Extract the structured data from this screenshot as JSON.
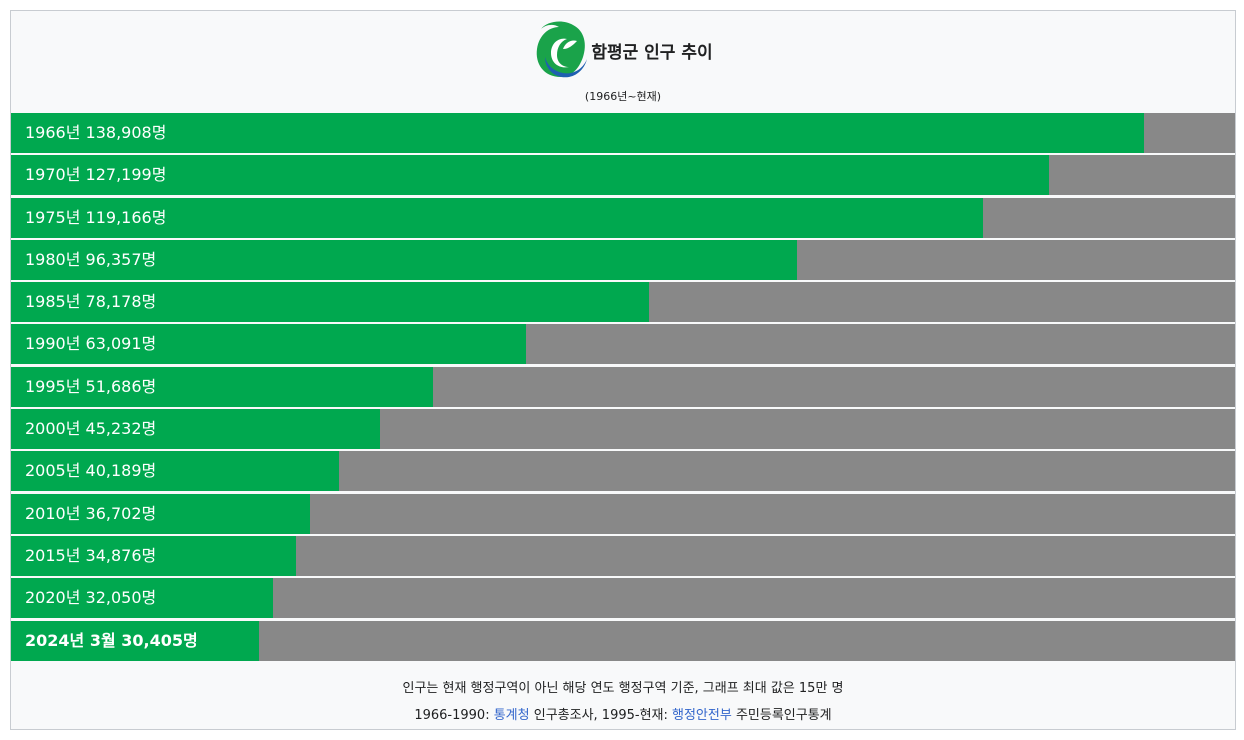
{
  "header": {
    "title": "함평군 인구 추이",
    "subtitle": "(1966년~현재)"
  },
  "colors": {
    "bar": "#00a84f",
    "track": "#888888",
    "link": "#3366cc"
  },
  "chart_data": {
    "type": "bar",
    "orientation": "horizontal",
    "max": 150000,
    "bars": [
      {
        "year": "1966",
        "label": "1966년 138,908명",
        "value": 138908
      },
      {
        "year": "1970",
        "label": "1970년 127,199명",
        "value": 127199
      },
      {
        "year": "1975",
        "label": "1975년 119,166명",
        "value": 119166
      },
      {
        "year": "1980",
        "label": "1980년 96,357명",
        "value": 96357
      },
      {
        "year": "1985",
        "label": "1985년 78,178명",
        "value": 78178
      },
      {
        "year": "1990",
        "label": "1990년 63,091명",
        "value": 63091
      },
      {
        "year": "1995",
        "label": "1995년 51,686명",
        "value": 51686
      },
      {
        "year": "2000",
        "label": "2000년 45,232명",
        "value": 45232
      },
      {
        "year": "2005",
        "label": "2005년 40,189명",
        "value": 40189
      },
      {
        "year": "2010",
        "label": "2010년 36,702명",
        "value": 36702
      },
      {
        "year": "2015",
        "label": "2015년 34,876명",
        "value": 34876
      },
      {
        "year": "2020",
        "label": "2020년 32,050명",
        "value": 32050
      },
      {
        "year": "2024",
        "label": "2024년 3월 30,405명",
        "value": 30405,
        "bold": true
      }
    ]
  },
  "footer": {
    "note": "인구는 현재 행정구역이 아닌 해당 연도 행정구역 기준, 그래프 최대 값은 15만 명",
    "source_prefix": "1966-1990: ",
    "source1_link": "통계청",
    "source1_text": " 인구총조사, 1995-현재: ",
    "source2_link": "행정안전부",
    "source2_text": " 주민등록인구통계"
  }
}
